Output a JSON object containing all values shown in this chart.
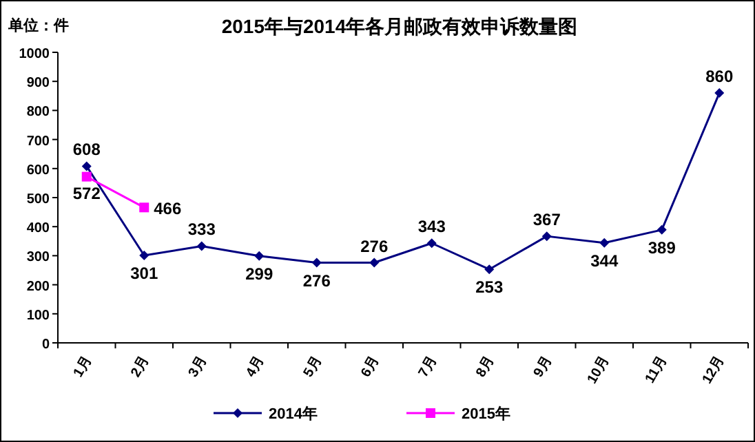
{
  "chart_data": {
    "type": "line",
    "title": "2015年与2014年各月邮政有效申诉数量图",
    "annotations": [
      "单位：件"
    ],
    "categories": [
      "1月",
      "2月",
      "3月",
      "4月",
      "5月",
      "6月",
      "7月",
      "8月",
      "9月",
      "10月",
      "11月",
      "12月"
    ],
    "series": [
      {
        "name": "2014年",
        "color": "#000080",
        "marker": "diamond",
        "values": [
          608,
          301,
          333,
          299,
          276,
          276,
          343,
          253,
          367,
          344,
          389,
          860
        ]
      },
      {
        "name": "2015年",
        "color": "#ff00ff",
        "marker": "square",
        "values": [
          572,
          466,
          null,
          null,
          null,
          null,
          null,
          null,
          null,
          null,
          null,
          null
        ]
      }
    ],
    "ylim": [
      0,
      1000
    ],
    "yticks": [
      0,
      100,
      200,
      300,
      400,
      500,
      600,
      700,
      800,
      900,
      1000
    ],
    "data_labels": true,
    "legend": "bottom",
    "grid": false
  }
}
